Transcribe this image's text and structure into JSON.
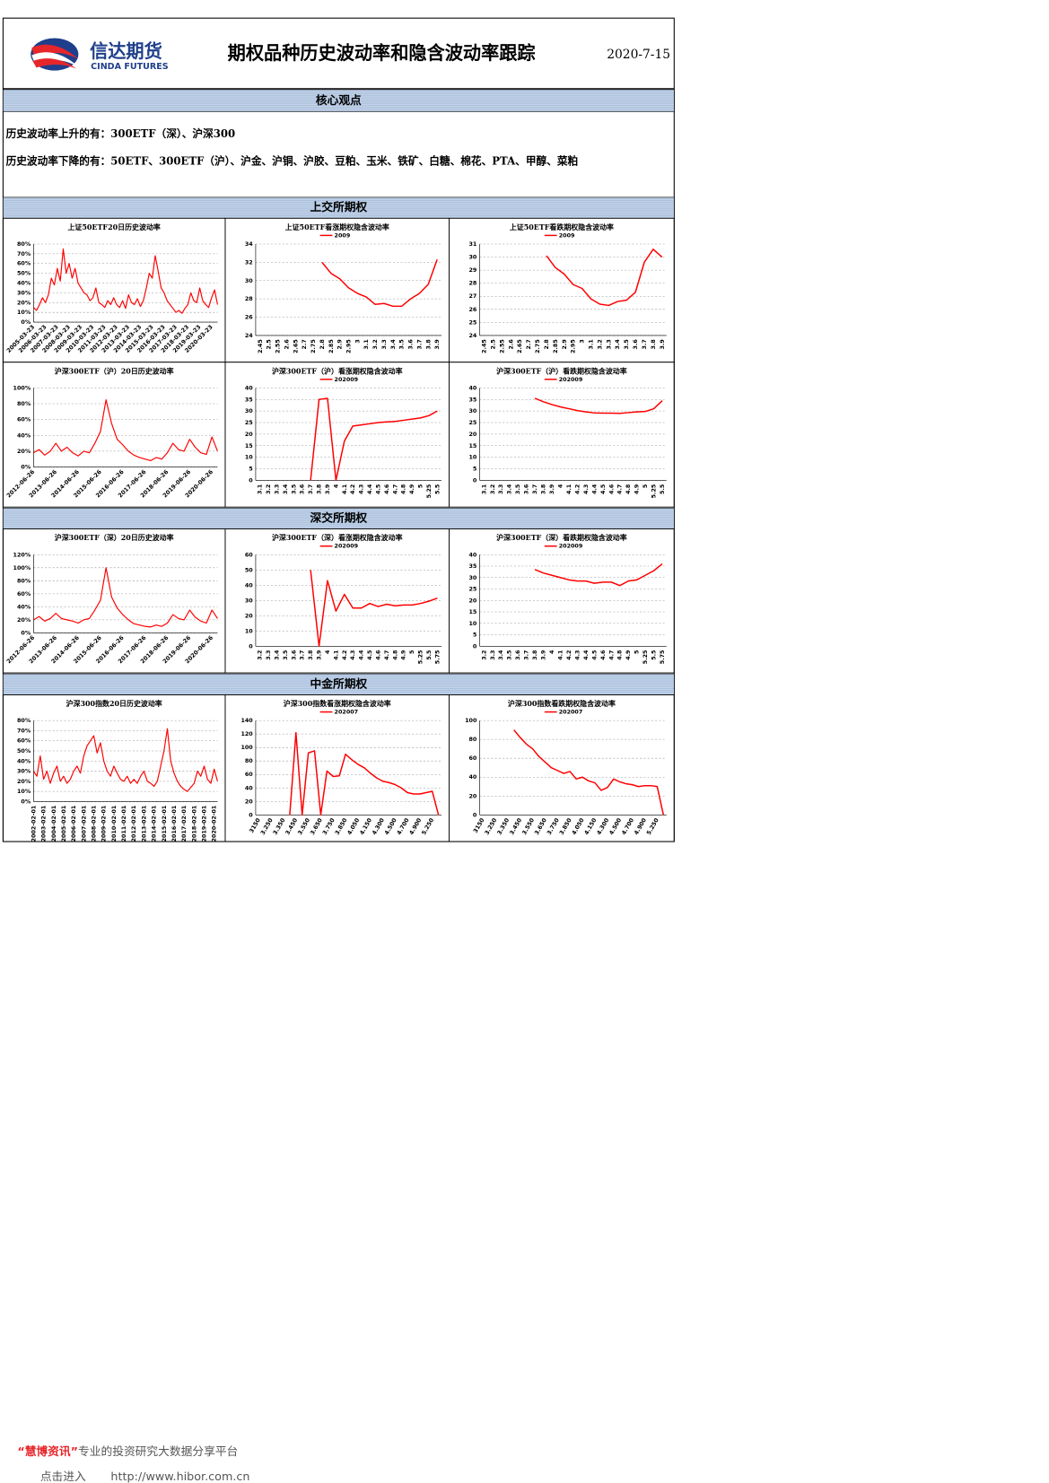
{
  "header": {
    "logo_cn": "信达期货",
    "logo_en": "CINDA FUTURES",
    "title": "期权品种历史波动率和隐含波动率跟踪",
    "date": "2020-7-15"
  },
  "summary": {
    "heading": "核心观点",
    "lines": [
      "历史波动率上升的有：300ETF（深）、沪深300",
      "历史波动率下降的有：50ETF、300ETF（沪）、沪金、沪铜、沪胶、豆粕、玉米、铁矿、白糖、棉花、PTA、甲醇、菜粕"
    ]
  },
  "sections": [
    "上交所期权",
    "深交所期权",
    "中金所期权"
  ],
  "chart_data": [
    {
      "type": "line",
      "title": "上证50ETF20日历史波动率",
      "color": "#ff0000",
      "categories": [
        "2005-03-23",
        null,
        null,
        null,
        "2006-03-23",
        null,
        null,
        null,
        "2007-03-23",
        null,
        null,
        null,
        "2008-03-23",
        null,
        null,
        null,
        "2009-03-23",
        null,
        null,
        null,
        "2010-03-23",
        null,
        null,
        null,
        "2011-03-23",
        null,
        null,
        null,
        "2012-03-23",
        null,
        null,
        null,
        "2013-03-23",
        null,
        null,
        null,
        "2014-03-23",
        null,
        null,
        null,
        "2015-03-23",
        null,
        null,
        null,
        "2016-03-23",
        null,
        null,
        null,
        "2017-03-23",
        null,
        null,
        null,
        "2018-03-23",
        null,
        null,
        null,
        "2019-03-23",
        null,
        null,
        null,
        "2020-03-23",
        null,
        null
      ],
      "values": [
        15,
        12,
        18,
        25,
        20,
        28,
        45,
        38,
        55,
        42,
        75,
        50,
        60,
        45,
        55,
        40,
        35,
        30,
        28,
        22,
        25,
        35,
        20,
        18,
        15,
        22,
        18,
        25,
        18,
        15,
        22,
        14,
        28,
        20,
        18,
        24,
        16,
        22,
        35,
        50,
        45,
        68,
        52,
        35,
        30,
        22,
        18,
        14,
        10,
        12,
        9,
        14,
        18,
        30,
        22,
        20,
        35,
        22,
        18,
        15,
        25,
        33,
        18
      ],
      "ylim": [
        0,
        80
      ],
      "yticks": [
        {
          "value": 0,
          "label": "0%"
        },
        {
          "value": 10,
          "label": "10%"
        },
        {
          "value": 20,
          "label": "20%"
        },
        {
          "value": 30,
          "label": "30%"
        },
        {
          "value": 40,
          "label": "40%"
        },
        {
          "value": 50,
          "label": "50%"
        },
        {
          "value": 60,
          "label": "60%"
        },
        {
          "value": 70,
          "label": "70%"
        },
        {
          "value": 80,
          "label": "80%"
        }
      ],
      "grid": true
    },
    {
      "type": "line",
      "title": "上证50ETF看涨期权隐含波动率",
      "legend": "top",
      "categories": [
        "2.45",
        "2.5",
        "2.55",
        "2.6",
        "2.65",
        "2.7",
        "2.75",
        "2.8",
        "2.85",
        "2.9",
        "2.95",
        "3",
        "3.1",
        "3.2",
        "3.3",
        "3.4",
        "3.5",
        "3.6",
        "3.7",
        "3.8",
        "3.9"
      ],
      "series": [
        {
          "name": "2009",
          "color": "#ff0000",
          "values": [
            null,
            null,
            null,
            null,
            null,
            null,
            null,
            32,
            30.8,
            30.2,
            29.2,
            28.6,
            28.2,
            27.4,
            27.5,
            27.2,
            27.2,
            28,
            28.6,
            29.6,
            32.3
          ]
        }
      ],
      "ylim": [
        24,
        34
      ],
      "yticks": [
        24,
        26,
        28,
        30,
        32,
        34
      ],
      "grid": true
    },
    {
      "type": "line",
      "title": "上证50ETF看跌期权隐含波动率",
      "legend": "top",
      "categories": [
        "2.45",
        "2.5",
        "2.55",
        "2.6",
        "2.65",
        "2.7",
        "2.75",
        "2.8",
        "2.85",
        "2.9",
        "2.95",
        "3",
        "3.1",
        "3.2",
        "3.3",
        "3.4",
        "3.5",
        "3.6",
        "3.7",
        "3.8",
        "3.9"
      ],
      "series": [
        {
          "name": "2009",
          "color": "#ff0000",
          "values": [
            null,
            null,
            null,
            null,
            null,
            null,
            null,
            30.1,
            29.2,
            28.7,
            27.9,
            27.6,
            26.8,
            26.4,
            26.3,
            26.6,
            26.7,
            27.3,
            29.6,
            30.6,
            30
          ]
        }
      ],
      "ylim": [
        24,
        31
      ],
      "yticks": [
        24,
        25,
        26,
        27,
        28,
        29,
        30,
        31
      ],
      "grid": true
    },
    {
      "type": "line",
      "title": "沪深300ETF（沪）20日历史波动率",
      "color": "#ff0000",
      "categories": [
        "2012-06-26",
        null,
        null,
        null,
        "2013-06-26",
        null,
        null,
        null,
        "2014-06-26",
        null,
        null,
        null,
        "2015-06-26",
        null,
        null,
        null,
        "2016-06-26",
        null,
        null,
        null,
        "2017-06-26",
        null,
        null,
        null,
        "2018-06-26",
        null,
        null,
        null,
        "2019-06-26",
        null,
        null,
        null,
        "2020-06-26",
        null
      ],
      "values": [
        18,
        22,
        15,
        20,
        30,
        20,
        25,
        18,
        14,
        20,
        18,
        30,
        45,
        85,
        55,
        35,
        28,
        20,
        15,
        12,
        10,
        8,
        12,
        10,
        18,
        30,
        22,
        20,
        35,
        25,
        18,
        16,
        38,
        20
      ],
      "ylim": [
        0,
        100
      ],
      "yticks": [
        {
          "value": 0,
          "label": "0%"
        },
        {
          "value": 20,
          "label": "20%"
        },
        {
          "value": 40,
          "label": "40%"
        },
        {
          "value": 60,
          "label": "60%"
        },
        {
          "value": 80,
          "label": "80%"
        },
        {
          "value": 100,
          "label": "100%"
        }
      ],
      "grid": true
    },
    {
      "type": "line",
      "title": "沪深300ETF（沪）看涨期权隐含波动率",
      "legend": "top",
      "categories": [
        "3.1",
        "3.2",
        "3.3",
        "3.4",
        "3.5",
        "3.6",
        "3.7",
        "3.8",
        "3.9",
        "4",
        "4.1",
        "4.2",
        "4.3",
        "4.4",
        "4.5",
        "4.6",
        "4.7",
        "4.8",
        "4.9",
        "5",
        "5.25",
        "5.5"
      ],
      "series": [
        {
          "name": "202009",
          "color": "#ff0000",
          "values": [
            null,
            null,
            null,
            null,
            null,
            null,
            0,
            35,
            35.5,
            0,
            17,
            23.5,
            24,
            24.5,
            25,
            25.3,
            25.5,
            26,
            26.5,
            27,
            28,
            30
          ]
        }
      ],
      "ylim": [
        0,
        40
      ],
      "yticks": [
        0,
        5,
        10,
        15,
        20,
        25,
        30,
        35,
        40
      ],
      "grid": true
    },
    {
      "type": "line",
      "title": "沪深300ETF（沪）看跌期权隐含波动率",
      "legend": "top",
      "categories": [
        "3.1",
        "3.2",
        "3.3",
        "3.4",
        "3.5",
        "3.6",
        "3.7",
        "3.8",
        "3.9",
        "4",
        "4.1",
        "4.2",
        "4.3",
        "4.4",
        "4.5",
        "4.6",
        "4.7",
        "4.8",
        "4.9",
        "5",
        "5.25",
        "5.5"
      ],
      "series": [
        {
          "name": "202009",
          "color": "#ff0000",
          "values": [
            null,
            null,
            null,
            null,
            null,
            null,
            35.5,
            34,
            32.8,
            31.8,
            31,
            30.2,
            29.6,
            29.2,
            29.1,
            29.1,
            29,
            29.3,
            29.6,
            29.8,
            31,
            34.5
          ]
        }
      ],
      "ylim": [
        0,
        40
      ],
      "yticks": [
        0,
        5,
        10,
        15,
        20,
        25,
        30,
        35,
        40
      ],
      "grid": true
    },
    {
      "type": "line",
      "title": "沪深300ETF（深）20日历史波动率",
      "color": "#ff0000",
      "categories": [
        "2012-06-26",
        null,
        null,
        null,
        "2013-06-26",
        null,
        null,
        null,
        "2014-06-26",
        null,
        null,
        null,
        "2015-06-26",
        null,
        null,
        null,
        "2016-06-26",
        null,
        null,
        null,
        "2017-06-26",
        null,
        null,
        null,
        "2018-06-26",
        null,
        null,
        null,
        "2019-06-26",
        null,
        null,
        null,
        "2020-06-26",
        null
      ],
      "values": [
        20,
        25,
        18,
        22,
        30,
        22,
        20,
        18,
        15,
        20,
        22,
        35,
        50,
        100,
        55,
        38,
        28,
        20,
        14,
        12,
        10,
        9,
        12,
        10,
        15,
        28,
        22,
        20,
        35,
        24,
        18,
        15,
        35,
        22
      ],
      "ylim": [
        0,
        120
      ],
      "yticks": [
        {
          "value": 0,
          "label": "0%"
        },
        {
          "value": 20,
          "label": "20%"
        },
        {
          "value": 40,
          "label": "40%"
        },
        {
          "value": 60,
          "label": "60%"
        },
        {
          "value": 80,
          "label": "80%"
        },
        {
          "value": 100,
          "label": "100%"
        },
        {
          "value": 120,
          "label": "120%"
        }
      ],
      "grid": true
    },
    {
      "type": "line",
      "title": "沪深300ETF（深）看涨期权隐含波动率",
      "legend": "top",
      "categories": [
        "3.2",
        "3.3",
        "3.4",
        "3.5",
        "3.6",
        "3.7",
        "3.8",
        "3.9",
        "4",
        "4.1",
        "4.2",
        "4.3",
        "4.4",
        "4.5",
        "4.6",
        "4.7",
        "4.8",
        "4.9",
        "5",
        "5.25",
        "5.5",
        "5.75"
      ],
      "series": [
        {
          "name": "202009",
          "color": "#ff0000",
          "values": [
            null,
            null,
            null,
            null,
            null,
            null,
            50,
            0,
            43,
            23,
            34,
            25,
            25,
            28,
            26,
            27.5,
            26.5,
            27,
            27,
            28,
            29.5,
            31.5
          ]
        }
      ],
      "ylim": [
        0,
        60
      ],
      "yticks": [
        0,
        10,
        20,
        30,
        40,
        50,
        60
      ],
      "grid": true
    },
    {
      "type": "line",
      "title": "沪深300ETF（深）看跌期权隐含波动率",
      "legend": "top",
      "categories": [
        "3.2",
        "3.3",
        "3.4",
        "3.5",
        "3.6",
        "3.7",
        "3.8",
        "3.9",
        "4",
        "4.1",
        "4.2",
        "4.3",
        "4.4",
        "4.5",
        "4.6",
        "4.7",
        "4.8",
        "4.9",
        "5",
        "5.25",
        "5.5",
        "5.75"
      ],
      "series": [
        {
          "name": "202009",
          "color": "#ff0000",
          "values": [
            null,
            null,
            null,
            null,
            null,
            null,
            33.5,
            32,
            31,
            30,
            29,
            28.5,
            28.5,
            27.5,
            28,
            28,
            26.5,
            28.5,
            29,
            31,
            33,
            36
          ]
        }
      ],
      "ylim": [
        0,
        40
      ],
      "yticks": [
        0,
        5,
        10,
        15,
        20,
        25,
        30,
        35,
        40
      ],
      "grid": true
    },
    {
      "type": "line",
      "title": "沪深300指数20日历史波动率",
      "color": "#ff0000",
      "categories": [
        "2002-02-01",
        null,
        null,
        "2003-02-01",
        null,
        null,
        "2004-02-01",
        null,
        null,
        "2005-02-01",
        null,
        null,
        "2006-02-01",
        null,
        null,
        "2007-02-01",
        null,
        null,
        "2008-02-01",
        null,
        null,
        "2009-02-01",
        null,
        null,
        "2010-02-01",
        null,
        null,
        "2011-02-01",
        null,
        null,
        "2012-02-01",
        null,
        null,
        "2013-02-01",
        null,
        null,
        "2014-02-01",
        null,
        null,
        "2015-02-01",
        null,
        null,
        "2016-02-01",
        null,
        null,
        "2017-02-01",
        null,
        null,
        "2018-02-01",
        null,
        null,
        "2019-02-01",
        null,
        null,
        "2020-02-01",
        null
      ],
      "values": [
        30,
        25,
        45,
        22,
        30,
        18,
        28,
        35,
        20,
        25,
        18,
        22,
        30,
        35,
        28,
        45,
        55,
        60,
        65,
        48,
        58,
        40,
        30,
        25,
        35,
        28,
        22,
        20,
        25,
        18,
        22,
        18,
        25,
        30,
        20,
        18,
        15,
        20,
        35,
        50,
        72,
        40,
        28,
        20,
        15,
        12,
        10,
        14,
        18,
        30,
        25,
        35,
        22,
        18,
        32,
        20
      ],
      "ylim": [
        0,
        80
      ],
      "yticks": [
        {
          "value": 0,
          "label": "0%"
        },
        {
          "value": 10,
          "label": "10%"
        },
        {
          "value": 20,
          "label": "20%"
        },
        {
          "value": 30,
          "label": "30%"
        },
        {
          "value": 40,
          "label": "40%"
        },
        {
          "value": 50,
          "label": "50%"
        },
        {
          "value": 60,
          "label": "60%"
        },
        {
          "value": 70,
          "label": "70%"
        },
        {
          "value": 80,
          "label": "80%"
        }
      ],
      "grid": true
    },
    {
      "type": "line",
      "title": "沪深300指数看涨期权隐含波动率",
      "legend": "top",
      "categories": [
        "3150",
        null,
        "3.250",
        null,
        "3.350",
        null,
        "3.450",
        null,
        "3.550",
        null,
        "3.650",
        null,
        "3.750",
        null,
        "3.850",
        null,
        "4.050",
        null,
        "4.150",
        null,
        "4.300",
        null,
        "4.500",
        null,
        "4.700",
        null,
        "4.900",
        null,
        "5.250",
        null
      ],
      "series": [
        {
          "name": "202007",
          "color": "#ff0000",
          "values": [
            null,
            null,
            null,
            null,
            null,
            0,
            122,
            0,
            92,
            95,
            0,
            65,
            57,
            58,
            90,
            82,
            75,
            70,
            62,
            55,
            50,
            48,
            45,
            40,
            33,
            31,
            31,
            33,
            35,
            0
          ]
        }
      ],
      "ylim": [
        0,
        140
      ],
      "yticks": [
        0,
        20,
        40,
        60,
        80,
        100,
        120,
        140
      ],
      "grid": true
    },
    {
      "type": "line",
      "title": "沪深300指数看跌期权隐含波动率",
      "legend": "top",
      "categories": [
        "3150",
        null,
        "3.250",
        null,
        "3.350",
        null,
        "3.450",
        null,
        "3.550",
        null,
        "3.650",
        null,
        "3.750",
        null,
        "3.850",
        null,
        "4.050",
        null,
        "4.150",
        null,
        "4.300",
        null,
        "4.500",
        null,
        "4.700",
        null,
        "4.900",
        null,
        "5.250",
        null
      ],
      "series": [
        {
          "name": "202007",
          "color": "#ff0000",
          "values": [
            null,
            null,
            null,
            null,
            null,
            90,
            82,
            75,
            70,
            62,
            56,
            50,
            47,
            44,
            46,
            38,
            40,
            36,
            34,
            26,
            29,
            38,
            35,
            33,
            32,
            30,
            31,
            31,
            30,
            0
          ]
        }
      ],
      "ylim": [
        0,
        100
      ],
      "yticks": [
        0,
        20,
        40,
        60,
        80,
        100
      ],
      "grid": true
    }
  ],
  "footer": {
    "brand": "“慧博资讯”",
    "slogan": "专业的投资研究大数据分享平台",
    "enter": "点击进入",
    "url": "http://www.hibor.com.cn"
  }
}
